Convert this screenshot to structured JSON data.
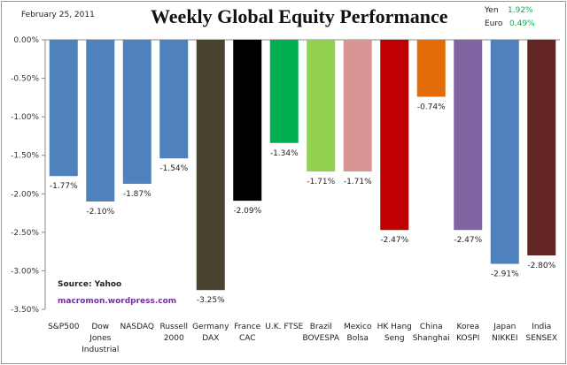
{
  "header": {
    "date": "February 25, 2011",
    "title": "Weekly Global Equity Performance",
    "fx": [
      {
        "label": "Yen",
        "value": "1.92%"
      },
      {
        "label": "Euro",
        "value": "0.49%"
      }
    ]
  },
  "notes": {
    "source": "Source:  Yahoo",
    "site": "macromon.wordpress.com"
  },
  "chart_data": {
    "type": "bar",
    "title": "Weekly Global Equity Performance",
    "xlabel": "",
    "ylabel": "",
    "ylim": [
      -3.5,
      0
    ],
    "yticks": [
      "0.00%",
      "-0.50%",
      "-1.00%",
      "-1.50%",
      "-2.00%",
      "-2.50%",
      "-3.00%",
      "-3.50%"
    ],
    "categories": [
      [
        "S&P500"
      ],
      [
        "Dow",
        "Jones",
        "Industrial"
      ],
      [
        "NASDAQ"
      ],
      [
        "Russell",
        "2000"
      ],
      [
        "Germany",
        "DAX"
      ],
      [
        "France",
        "CAC"
      ],
      [
        "U.K. FTSE"
      ],
      [
        "Brazil",
        "BOVESPA"
      ],
      [
        "Mexico",
        "Bolsa"
      ],
      [
        "HK Hang",
        "Seng"
      ],
      [
        "China",
        "Shanghai"
      ],
      [
        "Korea",
        "KOSPI"
      ],
      [
        "Japan",
        "NIKKEI"
      ],
      [
        "India",
        "SENSEX"
      ]
    ],
    "values": [
      -1.77,
      -2.1,
      -1.87,
      -1.54,
      -3.25,
      -2.09,
      -1.34,
      -1.71,
      -1.71,
      -2.47,
      -0.74,
      -2.47,
      -2.91,
      -2.8
    ],
    "labels": [
      "-1.77%",
      "-2.10%",
      "-1.87%",
      "-1.54%",
      "-3.25%",
      "-2.09%",
      "-1.34%",
      "-1.71%",
      "-1.71%",
      "-2.47%",
      "-0.74%",
      "-2.47%",
      "-2.91%",
      "-2.80%"
    ],
    "colors": [
      "#4f81bd",
      "#4f81bd",
      "#4f81bd",
      "#4f81bd",
      "#4a4330",
      "#000000",
      "#00b050",
      "#92d050",
      "#d99594",
      "#c00000",
      "#e36c09",
      "#8064a2",
      "#4f81bd",
      "#632523"
    ],
    "grid": false
  }
}
